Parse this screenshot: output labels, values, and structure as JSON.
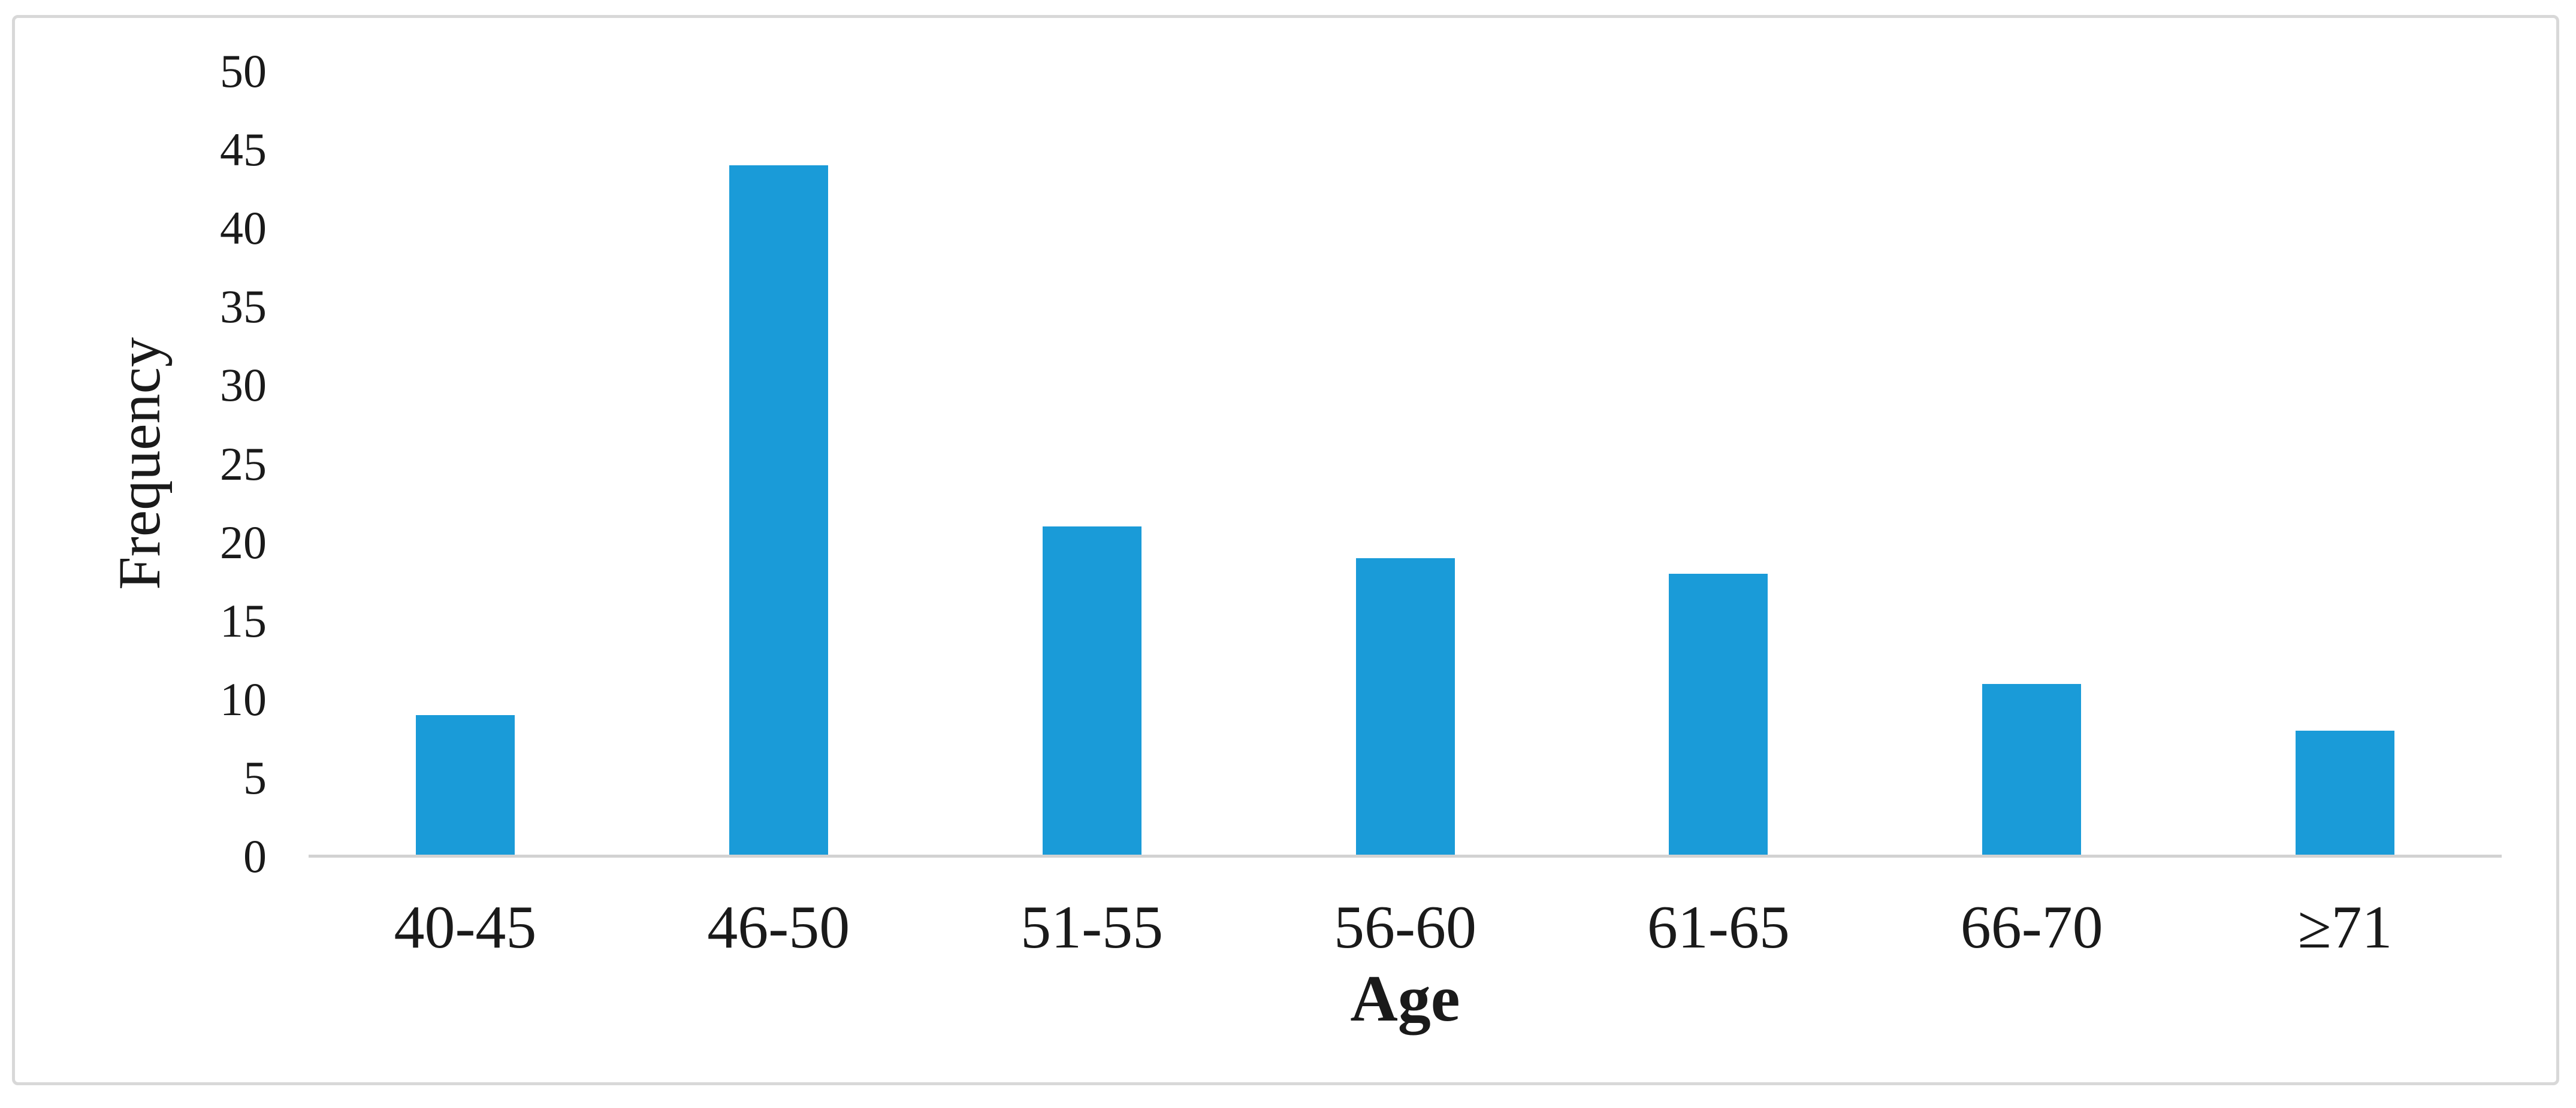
{
  "figure": {
    "background_color": "#FFFFFF",
    "frame_border_color": "#D8D8D8",
    "axis_line_color": "#D2D2D2",
    "text_color": "#1A1A1A"
  },
  "chart_data": {
    "type": "bar",
    "title": "",
    "categories": [
      "40-45",
      "46-50",
      "51-55",
      "56-60",
      "61-65",
      "66-70",
      "≥71"
    ],
    "values": [
      9,
      44,
      21,
      19,
      18,
      11,
      8
    ],
    "xlabel": "Age",
    "ylabel": "Frequency",
    "ylim": [
      0,
      50
    ],
    "yticks": [
      0,
      5,
      10,
      15,
      20,
      25,
      30,
      35,
      40,
      45,
      50
    ],
    "bar_color": "#1A9BD8",
    "grid": false,
    "legend": false,
    "bar_gap_note": "single series, wide gaps between bars"
  }
}
